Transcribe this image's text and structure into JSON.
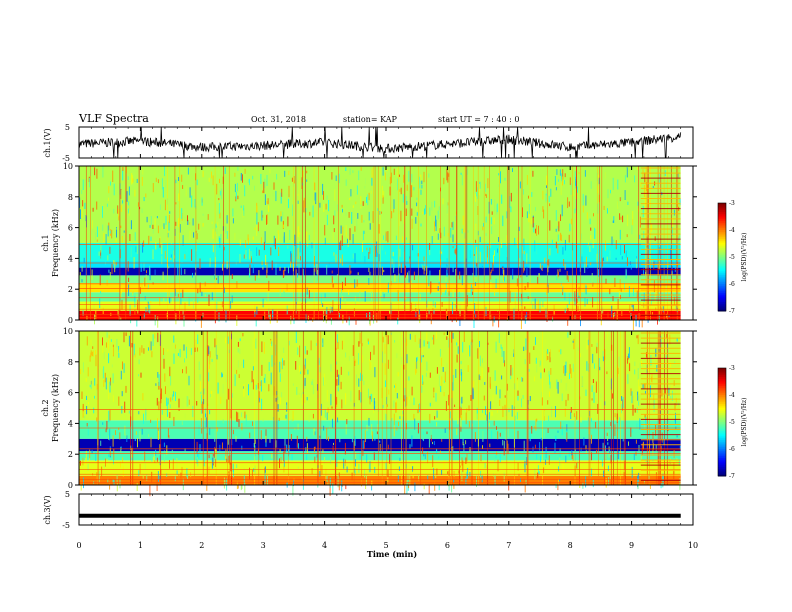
{
  "header": {
    "title": "VLF Spectra",
    "date": "Oct. 31, 2018",
    "station": "station= KAP",
    "start_ut": "start  UT =   7 : 40 : 0"
  },
  "colorbar": {
    "label": "log(PSD)(V²/Hz)",
    "ticks": [
      "-3",
      "-4",
      "-5",
      "-6",
      "-7"
    ]
  },
  "chart_data": [
    {
      "type": "line",
      "panel": "ch1-waveform",
      "ylabel": "ch.1(V)",
      "ylim": [
        -5,
        5
      ],
      "y_ticks": [
        "5",
        "-5"
      ],
      "xlim": [
        0,
        10
      ],
      "series": [
        {
          "x": [
            0,
            1,
            2,
            3,
            4,
            5,
            6,
            7,
            8,
            9,
            9.8
          ],
          "values": [
            -0.5,
            0.5,
            -1.5,
            -1,
            0,
            -2,
            -0.5,
            1,
            -1.5,
            0,
            2
          ]
        }
      ]
    },
    {
      "type": "heatmap",
      "panel": "ch1-spectrogram",
      "ylabel": "ch.1\nFrequency  (kHz)",
      "ylim": [
        0,
        10
      ],
      "y_ticks": [
        "0",
        "2",
        "4",
        "6",
        "8",
        "10"
      ],
      "xlim": [
        0,
        10
      ],
      "zlim": [
        -7,
        -3
      ],
      "bands": [
        {
          "f": [
            0,
            0.6
          ],
          "z": -3.5
        },
        {
          "f": [
            0.6,
            1.2
          ],
          "z": -4.6
        },
        {
          "f": [
            1.2,
            1.8
          ],
          "z": -5.1
        },
        {
          "f": [
            1.8,
            2.4
          ],
          "z": -4.4
        },
        {
          "f": [
            2.4,
            2.9
          ],
          "z": -5.0
        },
        {
          "f": [
            2.9,
            3.4
          ],
          "z": -6.8
        },
        {
          "f": [
            3.4,
            3.8
          ],
          "z": -5.6
        },
        {
          "f": [
            3.8,
            5.0
          ],
          "z": -5.4
        },
        {
          "f": [
            5.0,
            10.0
          ],
          "z": -4.8
        }
      ]
    },
    {
      "type": "heatmap",
      "panel": "ch2-spectrogram",
      "ylabel": "ch.2\nFrequency  (kHz)",
      "ylim": [
        0,
        10
      ],
      "y_ticks": [
        "0",
        "2",
        "4",
        "6",
        "8",
        "10"
      ],
      "xlim": [
        0,
        10
      ],
      "zlim": [
        -7,
        -3
      ],
      "bands": [
        {
          "f": [
            0,
            0.6
          ],
          "z": -4.0
        },
        {
          "f": [
            0.6,
            1.6
          ],
          "z": -4.6
        },
        {
          "f": [
            1.6,
            2.2
          ],
          "z": -5.2
        },
        {
          "f": [
            2.2,
            3.0
          ],
          "z": -6.8
        },
        {
          "f": [
            3.0,
            4.2
          ],
          "z": -5.2
        },
        {
          "f": [
            4.2,
            10.0
          ],
          "z": -4.7
        }
      ]
    },
    {
      "type": "line",
      "panel": "ch3-waveform",
      "ylabel": "ch.3(V)",
      "ylim": [
        -5,
        5
      ],
      "y_ticks": [
        "5",
        "-5"
      ],
      "xlim": [
        0,
        10
      ],
      "xlabel": "Time  (min)",
      "x_ticks": [
        "0",
        "1",
        "2",
        "3",
        "4",
        "5",
        "6",
        "7",
        "8",
        "9",
        "10"
      ],
      "series": [
        {
          "x": [
            0,
            9.8
          ],
          "values": [
            -2,
            -2
          ]
        }
      ]
    }
  ]
}
